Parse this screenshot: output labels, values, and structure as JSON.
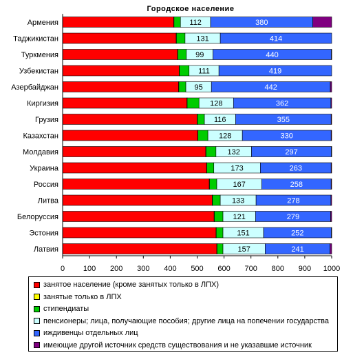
{
  "chart_data": {
    "type": "bar",
    "orientation": "horizontal",
    "stacked": true,
    "title": "Городское население",
    "categories": [
      "Армения",
      "Таджикистан",
      "Туркмения",
      "Узбекистан",
      "Азербайджан",
      "Киргизия",
      "Грузия",
      "Казахстан",
      "Молдавия",
      "Украина",
      "Россия",
      "Литва",
      "Белоруссия",
      "Эстония",
      "Латвия"
    ],
    "series": [
      {
        "name": "занятое население (кроме занятых только в ЛПХ)",
        "color": "#ff0000",
        "values": [
          413,
          422,
          427,
          433,
          431,
          462,
          500,
          502,
          532,
          535,
          545,
          556,
          563,
          570,
          573
        ]
      },
      {
        "name": "занятые только в ЛПХ",
        "color": "#ffff00",
        "values": [
          1,
          1,
          1,
          1,
          1,
          1,
          1,
          1,
          1,
          1,
          1,
          1,
          1,
          1,
          1
        ]
      },
      {
        "name": "стипендиаты",
        "color": "#00cc00",
        "values": [
          24,
          32,
          32,
          36,
          26,
          44,
          26,
          37,
          37,
          26,
          27,
          29,
          32,
          25,
          22
        ]
      },
      {
        "name": "пенсионеры; лица, получающие пособия; другие лица на попечении государства",
        "color": "#ccffff",
        "values": [
          112,
          131,
          99,
          111,
          95,
          128,
          116,
          128,
          132,
          173,
          167,
          133,
          121,
          151,
          157
        ]
      },
      {
        "name": "иждивенцы отдельных лиц",
        "color": "#3366ff",
        "values": [
          380,
          414,
          440,
          419,
          442,
          362,
          355,
          330,
          297,
          263,
          258,
          278,
          279,
          252,
          241
        ]
      },
      {
        "name": "имеющие другой источник средств существования и не указавшие источник",
        "color": "#800080",
        "values": [
          70,
          0,
          1,
          0,
          5,
          3,
          2,
          2,
          1,
          2,
          2,
          3,
          4,
          1,
          6
        ]
      }
    ],
    "data_labels": {
      "пенсионеры; лица, получающие пособия; другие лица на попечении государства": [
        112,
        131,
        99,
        111,
        95,
        128,
        116,
        128,
        132,
        173,
        167,
        133,
        121,
        151,
        157
      ],
      "иждивенцы отдельных лиц": [
        380,
        414,
        440,
        419,
        442,
        362,
        355,
        330,
        297,
        263,
        258,
        278,
        279,
        252,
        241
      ]
    },
    "xlim": [
      0,
      1000
    ],
    "xticks": [
      0,
      100,
      200,
      300,
      400,
      500,
      600,
      700,
      800,
      900,
      1000
    ],
    "grid": false,
    "legend_position": "bottom"
  }
}
